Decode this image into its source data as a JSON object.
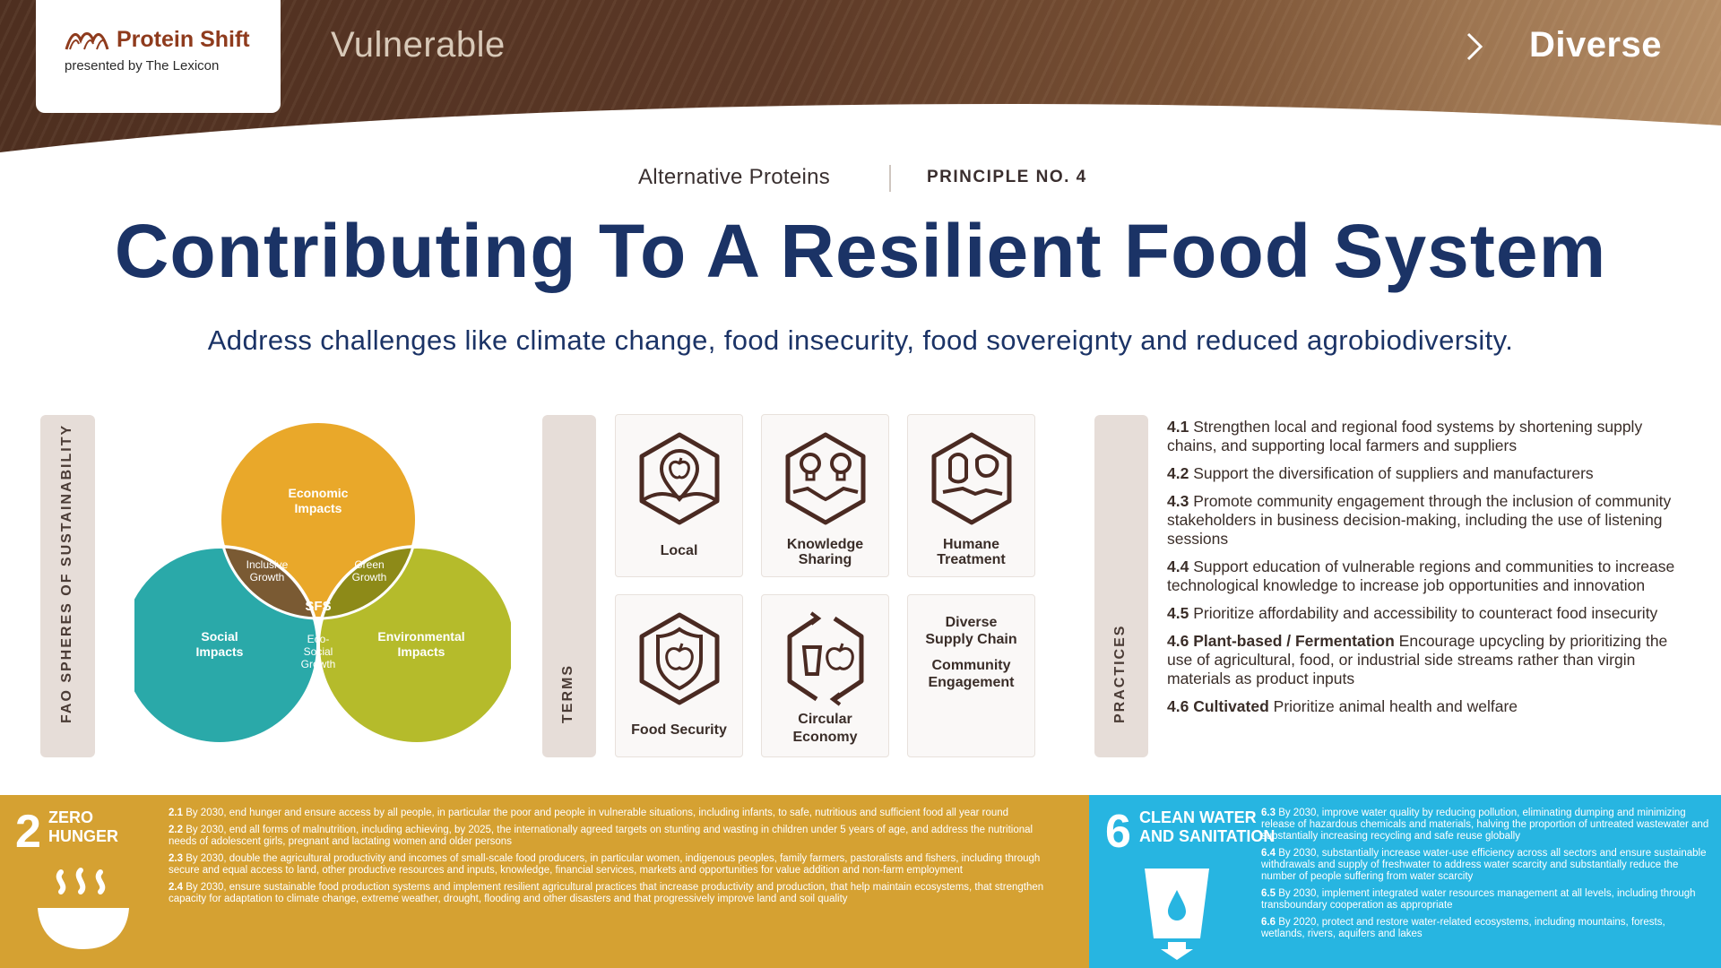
{
  "header": {
    "brand": "Protein Shift",
    "presented_by": "presented by The Lexicon",
    "scale_left": "Vulnerable",
    "scale_right": "Diverse"
  },
  "category": "Alternative Proteins",
  "principle": "PRINCIPLE NO. 4",
  "title": "Contributing To A Resilient Food System",
  "subtitle": "Address challenges like climate change, food insecurity, food sovereignty and reduced agrobiodiversity.",
  "fao": {
    "tab_label": "FAO SPHERES OF SUSTAINABILITY",
    "economic": [
      "Economic",
      "Impacts"
    ],
    "social": [
      "Social",
      "Impacts"
    ],
    "environmental": [
      "Environmental",
      "Impacts"
    ],
    "inclusive": [
      "Inclusive",
      "Growth"
    ],
    "green": [
      "Green",
      "Growth"
    ],
    "eco_social": [
      "Eco-",
      "Social",
      "Growth"
    ],
    "center": "SFS",
    "colors": {
      "economic": "#e9a82a",
      "social": "#2aa9a9",
      "environmental": "#b5bb2b",
      "center": "#7a5a46"
    }
  },
  "terms": {
    "tab_label": "TERMS",
    "local": "Local",
    "knowledge": [
      "Knowledge",
      "Sharing"
    ],
    "humane": [
      "Humane",
      "Treatment"
    ],
    "food_security": "Food Security",
    "circular": [
      "Circular",
      "Economy"
    ],
    "diverse": [
      "Diverse",
      "Supply Chain"
    ],
    "community": [
      "Community",
      "Engagement"
    ]
  },
  "practices": {
    "tab_label": "PRACTICES",
    "items": [
      {
        "num": "4.1",
        "text": " Strengthen local and regional food systems by shortening supply chains, and supporting local farmers and suppliers"
      },
      {
        "num": "4.2",
        "text": " Support the diversification of suppliers and manufacturers"
      },
      {
        "num": "4.3",
        "text": " Promote community engagement through the inclusion of community stakeholders in business decision-making, including the use of listening sessions"
      },
      {
        "num": "4.4",
        "text": " Support education of vulnerable regions and communities to increase technological knowledge to increase job opportunities and innovation"
      },
      {
        "num": "4.5",
        "text": " Prioritize affordability and accessibility to counteract food insecurity"
      },
      {
        "num": "4.6 Plant-based / Fermentation",
        "text": " Encourage upcycling by prioritizing the use of agricultural, food, or industrial side streams rather than virgin materials as product inputs"
      },
      {
        "num": "4.6 Cultivated",
        "text": " Prioritize animal health and welfare"
      }
    ]
  },
  "sdg2": {
    "number": "2",
    "name": [
      "ZERO",
      "HUNGER"
    ],
    "color": "#d5a132",
    "targets": [
      {
        "num": "2.1",
        "text": " By 2030, end hunger and ensure access by all people, in particular the poor and people in vulnerable situations, including infants, to safe, nutritious and sufficient food all year round"
      },
      {
        "num": "2.2",
        "text": " By 2030, end all forms of malnutrition, including achieving, by 2025, the internationally agreed targets on stunting and wasting in children under 5 years of age, and address the nutritional needs of adolescent girls, pregnant and lactating women and older persons"
      },
      {
        "num": "2.3",
        "text": " By 2030, double the agricultural productivity and incomes of small-scale food producers, in particular women, indigenous peoples, family farmers, pastoralists and fishers, including through secure and equal access to land, other productive resources and inputs, knowledge, financial services, markets and opportunities for value addition and non-farm employment"
      },
      {
        "num": "2.4",
        "text": " By 2030, ensure sustainable food production systems and implement resilient agricultural practices that increase productivity and production, that help maintain ecosystems, that strengthen capacity for adaptation to climate change, extreme weather, drought, flooding and other disasters and that progressively improve land and soil quality"
      }
    ]
  },
  "sdg6": {
    "number": "6",
    "name": [
      "CLEAN WATER",
      "AND SANITATION"
    ],
    "color": "#27b5e1",
    "targets": [
      {
        "num": "6.3",
        "text": " By 2030, improve water quality by reducing pollution, eliminating dumping and minimizing release of hazardous chemicals and materials, halving the proportion of untreated wastewater and substantially increasing recycling and safe reuse globally"
      },
      {
        "num": "6.4",
        "text": " By 2030, substantially increase water-use efficiency across all sectors and ensure sustainable withdrawals and supply of freshwater to address water scarcity and substantially reduce the number of people suffering from water scarcity"
      },
      {
        "num": "6.5",
        "text": " By 2030, implement integrated water resources management at all levels, including through transboundary cooperation as appropriate"
      },
      {
        "num": "6.6",
        "text": " By 2020, protect and restore water-related ecosystems, including mountains, forests, wetlands, rivers, aquifers and lakes"
      }
    ]
  }
}
